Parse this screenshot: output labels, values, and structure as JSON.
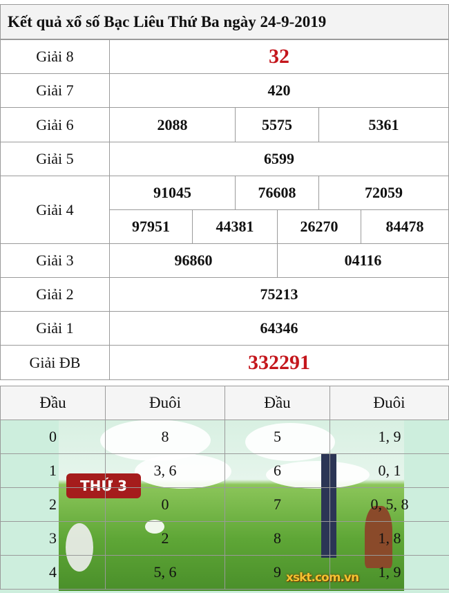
{
  "title": "Kết quả xổ số Bạc Liêu Thứ Ba ngày 24-9-2019",
  "prizes": {
    "g8": {
      "label": "Giải 8",
      "value": "32"
    },
    "g7": {
      "label": "Giải 7",
      "value": "420"
    },
    "g6": {
      "label": "Giải 6",
      "values": [
        "2088",
        "5575",
        "5361"
      ]
    },
    "g5": {
      "label": "Giải 5",
      "value": "6599"
    },
    "g4": {
      "label": "Giải 4",
      "values": [
        "91045",
        "76608",
        "72059",
        "97951",
        "44381",
        "26270",
        "84478"
      ]
    },
    "g3": {
      "label": "Giải 3",
      "values": [
        "96860",
        "04116"
      ]
    },
    "g2": {
      "label": "Giải 2",
      "value": "75213"
    },
    "g1": {
      "label": "Giải 1",
      "value": "64346"
    },
    "db": {
      "label": "Giải ĐB",
      "value": "332291"
    }
  },
  "loto": {
    "headers": [
      "Đầu",
      "Đuôi",
      "Đầu",
      "Đuôi"
    ],
    "rows": [
      [
        "0",
        "8",
        "5",
        "1, 9"
      ],
      [
        "1",
        "3, 6",
        "6",
        "0, 1"
      ],
      [
        "2",
        "0",
        "7",
        "0, 5, 8"
      ],
      [
        "3",
        "2",
        "8",
        "1, 8"
      ],
      [
        "4",
        "5, 6",
        "9",
        "1, 9"
      ]
    ]
  },
  "banner": {
    "badge": "THỨ 3",
    "watermark": "xskt.com.vn"
  },
  "colors": {
    "special": "#c4161c",
    "badge": "#a51c1c"
  }
}
